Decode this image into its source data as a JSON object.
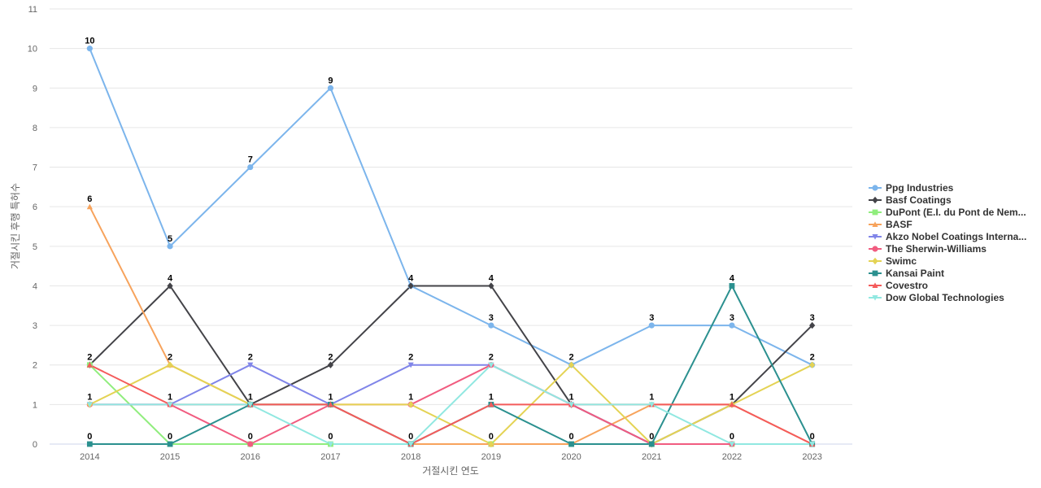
{
  "chart_data": {
    "type": "line",
    "title": "",
    "xlabel": "거절시킨 연도",
    "ylabel": "거절시킨 후행 특허수",
    "x": [
      "2014",
      "2015",
      "2016",
      "2017",
      "2018",
      "2019",
      "2020",
      "2021",
      "2022",
      "2023"
    ],
    "ylim": [
      0,
      11
    ],
    "yticks": [
      0,
      1,
      2,
      3,
      4,
      5,
      6,
      7,
      8,
      9,
      10,
      11
    ],
    "grid": true,
    "legend": "right",
    "series": [
      {
        "name": "Ppg Industries",
        "color": "#7cb5ec",
        "marker": "circle",
        "values": [
          10,
          5,
          7,
          9,
          4,
          3,
          2,
          3,
          3,
          2
        ]
      },
      {
        "name": "Basf Coatings",
        "color": "#434348",
        "marker": "diamond",
        "values": [
          2,
          4,
          1,
          2,
          4,
          4,
          1,
          0,
          1,
          3
        ]
      },
      {
        "name": "DuPont (E.I. du Pont de Nem...",
        "color": "#90ed7d",
        "marker": "square",
        "values": [
          2,
          0,
          0,
          0,
          0,
          0,
          0,
          0,
          0,
          0
        ]
      },
      {
        "name": "BASF",
        "color": "#f7a35c",
        "marker": "triangle",
        "values": [
          6,
          2,
          1,
          1,
          0,
          0,
          0,
          1,
          1,
          0
        ]
      },
      {
        "name": "Akzo Nobel Coatings Interna...",
        "color": "#8085e9",
        "marker": "triangle-down",
        "values": [
          1,
          1,
          2,
          1,
          2,
          2,
          1,
          0,
          0,
          0
        ]
      },
      {
        "name": "The Sherwin-Williams",
        "color": "#f15c80",
        "marker": "circle",
        "values": [
          1,
          1,
          0,
          1,
          1,
          2,
          1,
          0,
          0,
          0
        ]
      },
      {
        "name": "Swimc",
        "color": "#e4d354",
        "marker": "diamond",
        "values": [
          1,
          2,
          1,
          1,
          1,
          0,
          2,
          0,
          1,
          2
        ]
      },
      {
        "name": "Kansai Paint",
        "color": "#2b908f",
        "marker": "square",
        "values": [
          0,
          0,
          1,
          1,
          0,
          1,
          0,
          0,
          4,
          0
        ]
      },
      {
        "name": "Covestro",
        "color": "#f45b5b",
        "marker": "triangle",
        "values": [
          2,
          1,
          1,
          1,
          0,
          1,
          1,
          1,
          1,
          0
        ]
      },
      {
        "name": "Dow Global Technologies",
        "color": "#91e8e1",
        "marker": "triangle-down",
        "values": [
          1,
          1,
          1,
          0,
          0,
          2,
          1,
          1,
          0,
          0
        ]
      }
    ],
    "data_labels": [
      {
        "x": "2014",
        "value": 10
      },
      {
        "x": "2014",
        "value": 6
      },
      {
        "x": "2014",
        "value": 2
      },
      {
        "x": "2014",
        "value": 1
      },
      {
        "x": "2014",
        "value": 0
      },
      {
        "x": "2015",
        "value": 5
      },
      {
        "x": "2015",
        "value": 4
      },
      {
        "x": "2015",
        "value": 2
      },
      {
        "x": "2015",
        "value": 1
      },
      {
        "x": "2015",
        "value": 0
      },
      {
        "x": "2016",
        "value": 7
      },
      {
        "x": "2016",
        "value": 2
      },
      {
        "x": "2016",
        "value": 1
      },
      {
        "x": "2016",
        "value": 0
      },
      {
        "x": "2017",
        "value": 9
      },
      {
        "x": "2017",
        "value": 2
      },
      {
        "x": "2017",
        "value": 1
      },
      {
        "x": "2017",
        "value": 0
      },
      {
        "x": "2018",
        "value": 4
      },
      {
        "x": "2018",
        "value": 2
      },
      {
        "x": "2018",
        "value": 1
      },
      {
        "x": "2018",
        "value": 0
      },
      {
        "x": "2019",
        "value": 4
      },
      {
        "x": "2019",
        "value": 3
      },
      {
        "x": "2019",
        "value": 2
      },
      {
        "x": "2019",
        "value": 1
      },
      {
        "x": "2019",
        "value": 0
      },
      {
        "x": "2020",
        "value": 2
      },
      {
        "x": "2020",
        "value": 1
      },
      {
        "x": "2020",
        "value": 0
      },
      {
        "x": "2021",
        "value": 3
      },
      {
        "x": "2021",
        "value": 1
      },
      {
        "x": "2021",
        "value": 0
      },
      {
        "x": "2022",
        "value": 4
      },
      {
        "x": "2022",
        "value": 3
      },
      {
        "x": "2022",
        "value": 1
      },
      {
        "x": "2022",
        "value": 0
      },
      {
        "x": "2023",
        "value": 3
      },
      {
        "x": "2023",
        "value": 2
      },
      {
        "x": "2023",
        "value": 0
      }
    ]
  }
}
